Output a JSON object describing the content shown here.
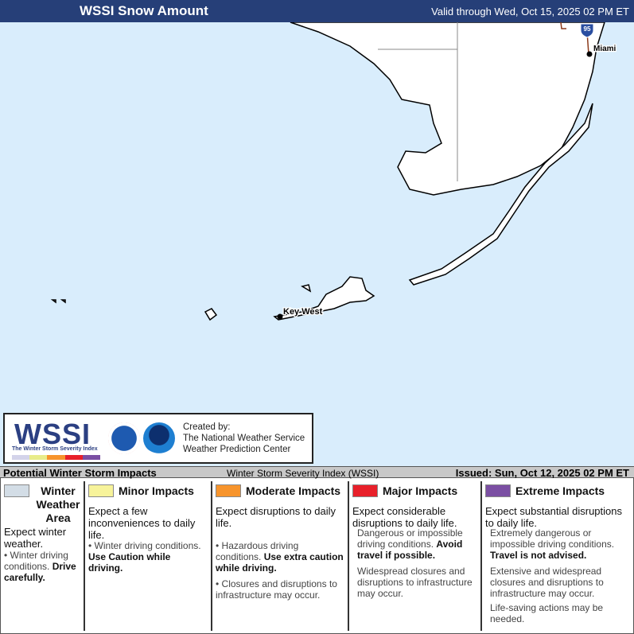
{
  "header": {
    "title": "WSSI Snow Amount",
    "valid": "Valid through Wed, Oct 15, 2025 02 PM ET"
  },
  "map": {
    "labels": {
      "miami": "Miami",
      "key_west": "Key West",
      "interstate": "95"
    },
    "colors": {
      "water": "#d9edfc",
      "land": "#ffffff"
    }
  },
  "logo": {
    "wssi": "WSSI",
    "subtitle": "The Winter Storm Severity Index",
    "created_by": "Created by:",
    "org1": "The National Weather Service",
    "org2": "Weather Prediction Center",
    "nws_seal": "nws-logo",
    "noaa_seal": "noaa-logo",
    "noaa_text": "NOAA"
  },
  "impacts_bar": {
    "title": "Potential Winter Storm Impacts",
    "index": "Winter Storm Severity Index (WSSI)",
    "issued": "Issued: Sun, Oct 12, 2025 02 PM ET"
  },
  "legend": [
    {
      "color": "#d3dde6",
      "title": "Winter Weather Area",
      "expect": "Expect winter weather.",
      "bullets": [
        {
          "text": "• Winter driving conditions. ",
          "bold": "Drive carefully."
        }
      ]
    },
    {
      "color": "#f7f39a",
      "title": "Minor Impacts",
      "expect": "Expect a few inconveniences to daily life.",
      "bullets": [
        {
          "text": "• Winter driving conditions. ",
          "bold": "Use Caution while driving."
        }
      ]
    },
    {
      "color": "#f7942c",
      "title": "Moderate Impacts",
      "expect": "Expect disruptions to daily life.",
      "bullets": [
        {
          "text": "• Hazardous driving conditions. ",
          "bold": "Use extra caution while driving."
        },
        {
          "text": "• Closures and disruptions to infrastructure may occur.",
          "bold": ""
        }
      ]
    },
    {
      "color": "#e8202a",
      "title": "Major Impacts",
      "expect": "Expect considerable disruptions to daily life.",
      "bullets": [
        {
          "text": "Dangerous or impossible driving conditions. ",
          "bold": "Avoid travel if possible."
        },
        {
          "text": "Widespread closures and disruptions to infrastructure may occur.",
          "bold": ""
        }
      ]
    },
    {
      "color": "#7b4fa3",
      "title": "Extreme Impacts",
      "expect": "Expect substantial disruptions to daily life.",
      "bullets": [
        {
          "text": "Extremely dangerous or impossible driving conditions. ",
          "bold": "Travel is not advised."
        },
        {
          "text": "Extensive and widespread closures and disruptions to infrastructure may occur.",
          "bold": ""
        },
        {
          "text": "Life-saving actions may be needed.",
          "bold": ""
        }
      ]
    }
  ]
}
